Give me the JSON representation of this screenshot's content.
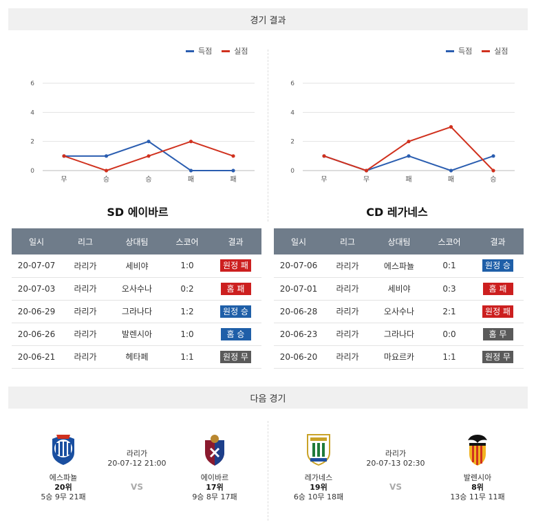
{
  "sections": {
    "results_title": "경기 결과",
    "next_title": "다음 경기"
  },
  "legend": {
    "scored": "득점",
    "conceded": "실점",
    "scored_color": "#2a5db0",
    "conceded_color": "#d0311e"
  },
  "chart_data": [
    {
      "type": "line",
      "categories": [
        "무",
        "승",
        "승",
        "패",
        "패"
      ],
      "series": [
        {
          "name": "득점",
          "values": [
            1,
            1,
            2,
            0,
            0
          ]
        },
        {
          "name": "실점",
          "values": [
            1,
            0,
            1,
            2,
            1
          ]
        }
      ],
      "ylim": [
        0,
        6
      ],
      "yticks": [
        0,
        2,
        4,
        6
      ],
      "grid": true,
      "legend": "top-right"
    },
    {
      "type": "line",
      "categories": [
        "무",
        "무",
        "패",
        "패",
        "승"
      ],
      "series": [
        {
          "name": "득점",
          "values": [
            1,
            0,
            1,
            0,
            1
          ]
        },
        {
          "name": "실점",
          "values": [
            1,
            0,
            2,
            3,
            0
          ]
        }
      ],
      "ylim": [
        0,
        6
      ],
      "yticks": [
        0,
        2,
        4,
        6
      ],
      "grid": true,
      "legend": "top-right"
    }
  ],
  "teams": [
    {
      "title_prefix": "SD",
      "title_name": "에이바르",
      "headers": [
        "일시",
        "리그",
        "상대팀",
        "스코어",
        "결과"
      ],
      "rows": [
        {
          "date": "20-07-07",
          "league": "라리가",
          "opponent": "세비야",
          "score": "1:0",
          "result": "원정 패",
          "kind": "loss"
        },
        {
          "date": "20-07-03",
          "league": "라리가",
          "opponent": "오사수나",
          "score": "0:2",
          "result": "홈 패",
          "kind": "loss"
        },
        {
          "date": "20-06-29",
          "league": "라리가",
          "opponent": "그라나다",
          "score": "1:2",
          "result": "원정 승",
          "kind": "win"
        },
        {
          "date": "20-06-26",
          "league": "라리가",
          "opponent": "발렌시아",
          "score": "1:0",
          "result": "홈 승",
          "kind": "win"
        },
        {
          "date": "20-06-21",
          "league": "라리가",
          "opponent": "헤타페",
          "score": "1:1",
          "result": "원정 무",
          "kind": "draw"
        }
      ]
    },
    {
      "title_prefix": "CD",
      "title_name": "레가네스",
      "headers": [
        "일시",
        "리그",
        "상대팀",
        "스코어",
        "결과"
      ],
      "rows": [
        {
          "date": "20-07-06",
          "league": "라리가",
          "opponent": "에스파뇰",
          "score": "0:1",
          "result": "원정 승",
          "kind": "win"
        },
        {
          "date": "20-07-01",
          "league": "라리가",
          "opponent": "세비야",
          "score": "0:3",
          "result": "홈 패",
          "kind": "loss"
        },
        {
          "date": "20-06-28",
          "league": "라리가",
          "opponent": "오사수나",
          "score": "2:1",
          "result": "원정 패",
          "kind": "loss"
        },
        {
          "date": "20-06-23",
          "league": "라리가",
          "opponent": "그라나다",
          "score": "0:0",
          "result": "홈 무",
          "kind": "draw"
        },
        {
          "date": "20-06-20",
          "league": "라리가",
          "opponent": "마요르카",
          "score": "1:1",
          "result": "원정 무",
          "kind": "draw"
        }
      ]
    }
  ],
  "next_matches": [
    {
      "home": {
        "name": "에스파뇰",
        "rank": "20위",
        "record": "5승 9무 21패",
        "logo": "espanyol-crest"
      },
      "away": {
        "name": "에이바르",
        "rank": "17위",
        "record": "9승 8무 17패",
        "logo": "eibar-crest"
      },
      "league": "라리가",
      "datetime": "20-07-12 21:00",
      "vs": "VS"
    },
    {
      "home": {
        "name": "레가네스",
        "rank": "19위",
        "record": "6승 10무 18패",
        "logo": "leganes-crest"
      },
      "away": {
        "name": "발렌시아",
        "rank": "8위",
        "record": "13승 11무 11패",
        "logo": "valencia-crest"
      },
      "league": "라리가",
      "datetime": "20-07-13 02:30",
      "vs": "VS"
    }
  ]
}
